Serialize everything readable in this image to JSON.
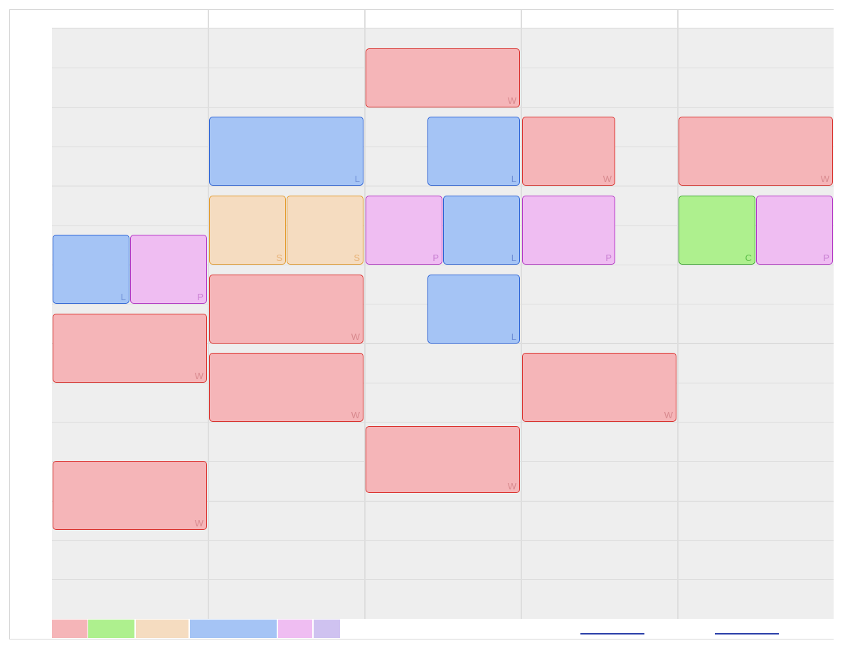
{
  "calendar": {
    "days": [
      "",
      "",
      "",
      "",
      ""
    ],
    "events": [
      {
        "day": 2,
        "start": 0.5,
        "end": 2.0,
        "tag": "W",
        "type": "W"
      },
      {
        "day": 1,
        "start": 2.25,
        "end": 4.0,
        "tag": "L",
        "type": "L"
      },
      {
        "day": 2,
        "start": 2.25,
        "end": 4.0,
        "tag": "L",
        "type": "L",
        "col": 1,
        "cols": 2,
        "offset": 0.4
      },
      {
        "day": 3,
        "start": 2.25,
        "end": 4.0,
        "tag": "W",
        "type": "W",
        "col": 0,
        "cols": 2,
        "offset": 0
      },
      {
        "day": 4,
        "start": 2.25,
        "end": 4.0,
        "tag": "W",
        "type": "W"
      },
      {
        "day": 1,
        "start": 4.25,
        "end": 6.0,
        "tag": "S",
        "type": "S",
        "col": 0,
        "cols": 2
      },
      {
        "day": 1,
        "start": 4.25,
        "end": 6.0,
        "tag": "S",
        "type": "S",
        "col": 1,
        "cols": 2
      },
      {
        "day": 2,
        "start": 4.25,
        "end": 6.0,
        "tag": "P",
        "type": "P",
        "col": 0,
        "cols": 2
      },
      {
        "day": 2,
        "start": 4.25,
        "end": 6.0,
        "tag": "L",
        "type": "L",
        "col": 1,
        "cols": 2
      },
      {
        "day": 3,
        "start": 4.25,
        "end": 6.0,
        "tag": "P",
        "type": "P",
        "col": 0,
        "cols": 2,
        "offset": 0
      },
      {
        "day": 4,
        "start": 4.25,
        "end": 6.0,
        "tag": "C",
        "type": "C",
        "col": 0,
        "cols": 2
      },
      {
        "day": 4,
        "start": 4.25,
        "end": 6.0,
        "tag": "P",
        "type": "P",
        "col": 1,
        "cols": 2
      },
      {
        "day": 0,
        "start": 5.25,
        "end": 7.0,
        "tag": "L",
        "type": "L",
        "col": 0,
        "cols": 2
      },
      {
        "day": 0,
        "start": 5.25,
        "end": 7.0,
        "tag": "P",
        "type": "P",
        "col": 1,
        "cols": 2
      },
      {
        "day": 1,
        "start": 6.25,
        "end": 8.0,
        "tag": "W",
        "type": "W"
      },
      {
        "day": 2,
        "start": 6.25,
        "end": 8.0,
        "tag": "L",
        "type": "L",
        "col": 1,
        "cols": 2,
        "offset": 0.4
      },
      {
        "day": 0,
        "start": 7.25,
        "end": 9.0,
        "tag": "W",
        "type": "W"
      },
      {
        "day": 1,
        "start": 8.25,
        "end": 10.0,
        "tag": "W",
        "type": "W"
      },
      {
        "day": 3,
        "start": 8.25,
        "end": 10.0,
        "tag": "W",
        "type": "W"
      },
      {
        "day": 2,
        "start": 10.1,
        "end": 11.8,
        "tag": "W",
        "type": "W"
      },
      {
        "day": 0,
        "start": 11.0,
        "end": 12.75,
        "tag": "W",
        "type": "W"
      }
    ]
  },
  "colors": {
    "W": "#f5b5b8",
    "C": "#aef08e",
    "S": "#f5dcc0",
    "L": "#a5c4f5",
    "P": "#efbdf2",
    "extra": "#cfc2f0"
  },
  "legend": {
    "swatches": [
      {
        "type": "W",
        "color": "#f5b5b8"
      },
      {
        "type": "C",
        "color": "#aef08e"
      },
      {
        "type": "S",
        "color": "#f5dcc0"
      },
      {
        "type": "L",
        "color": "#a5c4f5"
      },
      {
        "type": "P",
        "color": "#efbdf2"
      },
      {
        "type": "extra",
        "color": "#cfc2f0"
      }
    ]
  }
}
